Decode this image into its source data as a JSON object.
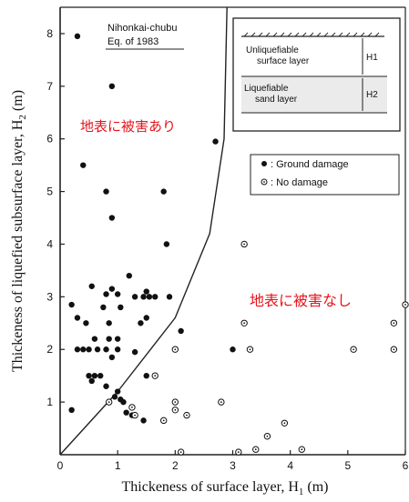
{
  "chart_data": {
    "type": "scatter",
    "title": "Nihonkai-chubu",
    "subtitle": "Eq. of 1983",
    "xlabel": "Thickeness of surface layer, H",
    "xlabel_sub": "1",
    "xlabel_unit": "(m)",
    "ylabel": "Thickeness of liquefied subsurface layer, H",
    "ylabel_sub": "2",
    "ylabel_unit": "(m)",
    "xlim": [
      0,
      6
    ],
    "ylim": [
      0,
      8.5
    ],
    "x_ticks": [
      "0",
      "1",
      "2",
      "3",
      "4",
      "5",
      "6"
    ],
    "y_ticks": [
      "1",
      "2",
      "3",
      "4",
      "5",
      "6",
      "7",
      "8"
    ],
    "grid": false,
    "legend_position": "right",
    "inset": {
      "upper_label_line1": "Unliquefiable",
      "upper_label_line2": "surface layer",
      "upper_symbol": "H1",
      "lower_label_line1": "Liquefiable",
      "lower_label_line2": "sand layer",
      "lower_symbol": "H2"
    },
    "annotations": {
      "damage_region": "地表に被害あり",
      "no_damage_region": "地表に被害なし",
      "damage_color": "#e8131b"
    },
    "boundary_curve": [
      [
        0,
        0
      ],
      [
        1,
        1.2
      ],
      [
        2,
        2.6
      ],
      [
        2.6,
        4.2
      ],
      [
        2.85,
        6
      ],
      [
        2.9,
        8.5
      ]
    ],
    "series": [
      {
        "name": ": Ground damage",
        "marker": "filled",
        "points": [
          [
            0.3,
            7.95
          ],
          [
            0.9,
            7.0
          ],
          [
            2.7,
            5.95
          ],
          [
            0.4,
            5.5
          ],
          [
            0.8,
            5.0
          ],
          [
            1.8,
            5.0
          ],
          [
            0.9,
            4.5
          ],
          [
            1.85,
            4.0
          ],
          [
            1.2,
            3.4
          ],
          [
            0.55,
            3.2
          ],
          [
            0.9,
            3.15
          ],
          [
            1.5,
            3.1
          ],
          [
            0.8,
            3.05
          ],
          [
            1.0,
            3.05
          ],
          [
            1.3,
            3.0
          ],
          [
            1.45,
            3.0
          ],
          [
            1.55,
            3.0
          ],
          [
            1.65,
            3.0
          ],
          [
            1.9,
            3.0
          ],
          [
            0.2,
            2.85
          ],
          [
            0.75,
            2.8
          ],
          [
            1.05,
            2.8
          ],
          [
            0.3,
            2.6
          ],
          [
            1.5,
            2.6
          ],
          [
            0.45,
            2.5
          ],
          [
            0.85,
            2.5
          ],
          [
            1.4,
            2.5
          ],
          [
            2.1,
            2.35
          ],
          [
            0.6,
            2.2
          ],
          [
            0.85,
            2.2
          ],
          [
            1.0,
            2.2
          ],
          [
            0.3,
            2.0
          ],
          [
            0.4,
            2.0
          ],
          [
            0.5,
            2.0
          ],
          [
            0.65,
            2.0
          ],
          [
            0.8,
            2.0
          ],
          [
            1.0,
            2.0
          ],
          [
            3.0,
            2.0
          ],
          [
            1.3,
            1.95
          ],
          [
            0.9,
            1.85
          ],
          [
            0.5,
            1.5
          ],
          [
            0.6,
            1.5
          ],
          [
            0.7,
            1.5
          ],
          [
            0.55,
            1.4
          ],
          [
            1.5,
            1.5
          ],
          [
            0.8,
            1.3
          ],
          [
            1.0,
            1.2
          ],
          [
            0.95,
            1.1
          ],
          [
            1.05,
            1.05
          ],
          [
            1.1,
            1.0
          ],
          [
            0.2,
            0.85
          ],
          [
            1.15,
            0.8
          ],
          [
            1.25,
            0.75
          ],
          [
            1.45,
            0.65
          ]
        ]
      },
      {
        "name": ": No damage",
        "marker": "open",
        "points": [
          [
            3.2,
            4.0
          ],
          [
            3.2,
            2.5
          ],
          [
            3.3,
            2.0
          ],
          [
            5.8,
            2.5
          ],
          [
            5.1,
            2.0
          ],
          [
            5.8,
            2.0
          ],
          [
            6.0,
            2.85
          ],
          [
            2.0,
            2.0
          ],
          [
            1.65,
            1.5
          ],
          [
            0.85,
            1.0
          ],
          [
            2.0,
            1.0
          ],
          [
            2.8,
            1.0
          ],
          [
            1.25,
            0.9
          ],
          [
            2.0,
            0.85
          ],
          [
            1.3,
            0.75
          ],
          [
            1.8,
            0.65
          ],
          [
            2.2,
            0.75
          ],
          [
            3.9,
            0.6
          ],
          [
            3.6,
            0.35
          ],
          [
            2.1,
            0.05
          ],
          [
            3.1,
            0.05
          ],
          [
            3.4,
            0.1
          ],
          [
            4.2,
            0.1
          ]
        ]
      }
    ]
  }
}
